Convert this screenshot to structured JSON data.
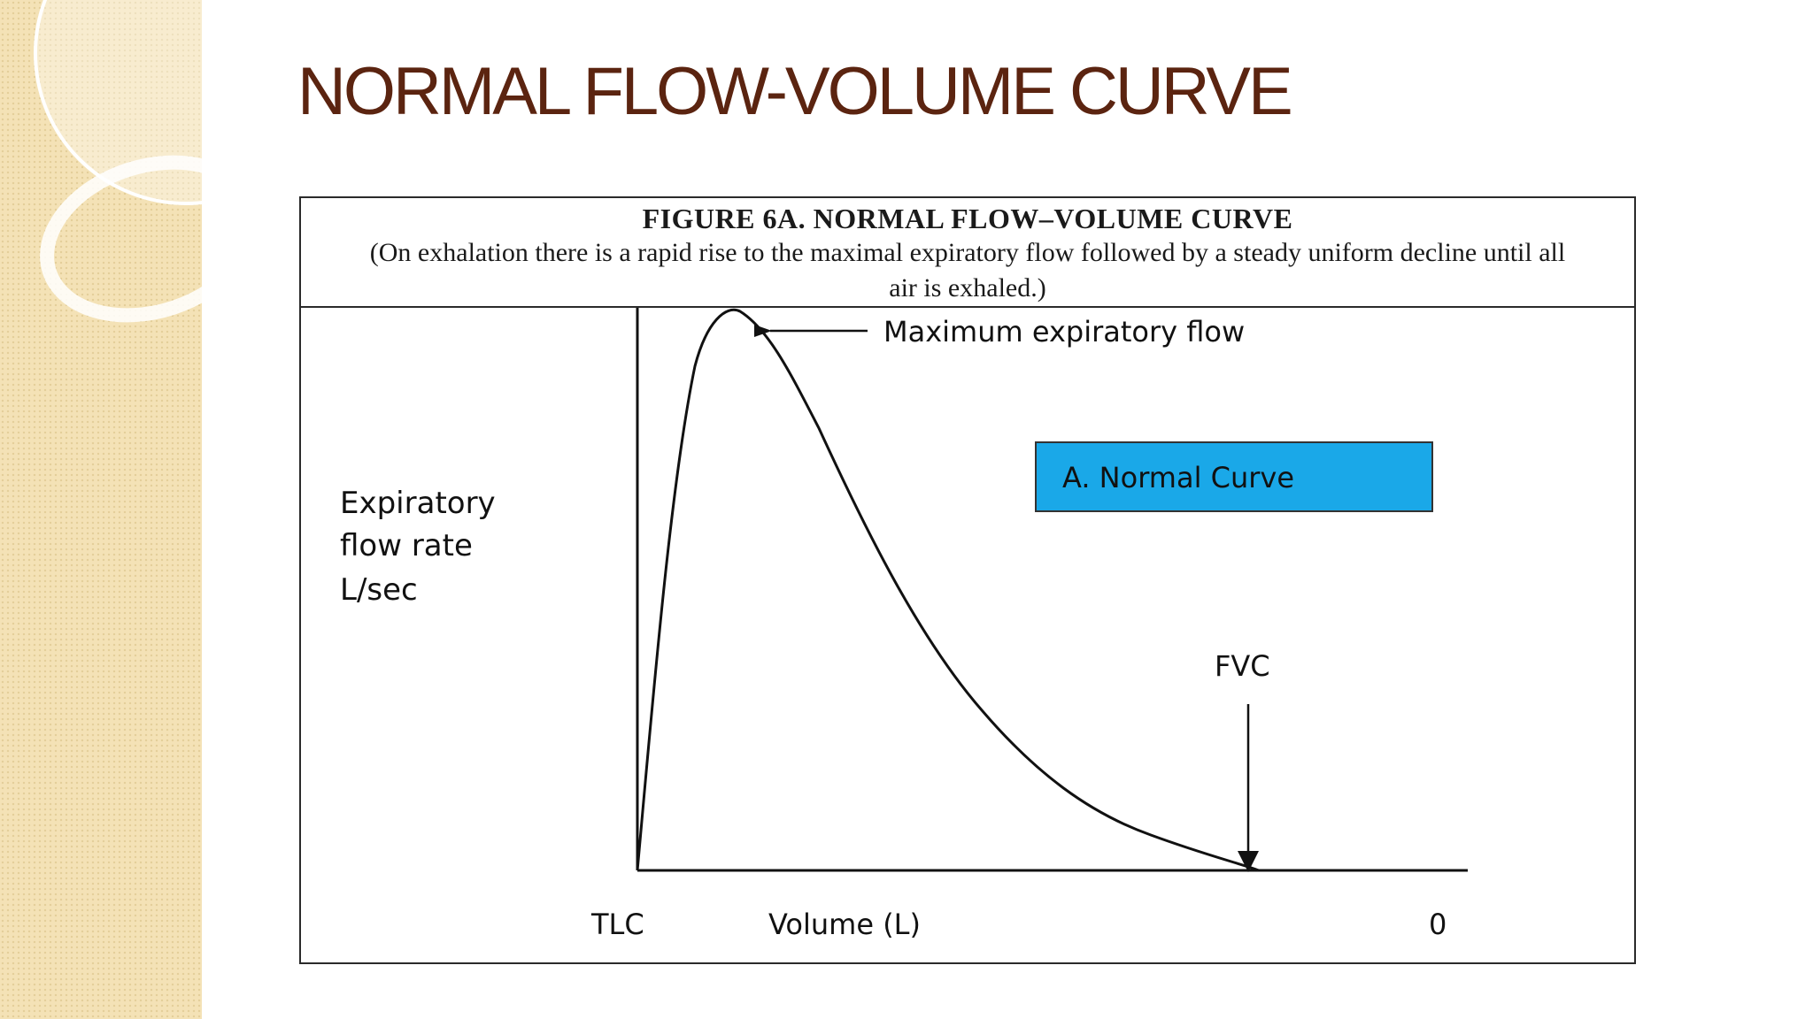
{
  "slide": {
    "title": "NORMAL FLOW-VOLUME CURVE"
  },
  "figure": {
    "title": "FIGURE 6A.  NORMAL FLOW–VOLUME CURVE",
    "caption": "(On exhalation there is a rapid rise to the maximal expiratory flow followed by a steady uniform decline until all air is exhaled.)"
  },
  "diagram": {
    "y_axis_label_lines": [
      "Expiratory",
      "flow rate",
      "L/sec"
    ],
    "x_axis_label": "Volume (L)",
    "x_left_label": "TLC",
    "x_right_label": "0",
    "peak_annotation": "Maximum expiratory flow",
    "fvc_annotation": "FVC",
    "legend_box_label": "A.  Normal Curve"
  },
  "colors": {
    "title": "#5b2410",
    "side_panel": "#f4e2b6",
    "legend_box": "#1aa8e8",
    "line": "#111111"
  }
}
